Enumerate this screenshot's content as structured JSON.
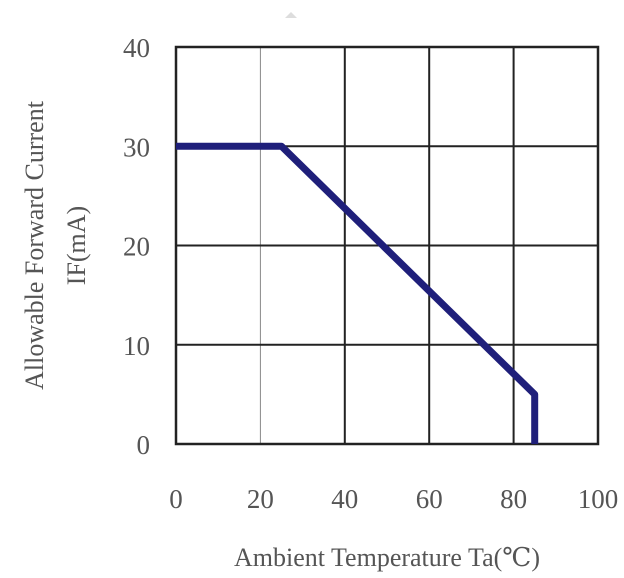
{
  "chart_data": {
    "type": "line",
    "xlabel": "Ambient Temperature Ta(℃)",
    "ylabel_line1": "Allowable Forward Current",
    "ylabel_line2": "IF(mA)",
    "xlim": [
      0,
      100
    ],
    "ylim": [
      0,
      40
    ],
    "x_ticks": [
      "0",
      "20",
      "40",
      "60",
      "80",
      "100"
    ],
    "y_ticks": [
      "0",
      "10",
      "20",
      "30",
      "40"
    ],
    "grid": true,
    "series": [
      {
        "color": "#1f1f7a",
        "points": [
          [
            0,
            30
          ],
          [
            25,
            30
          ],
          [
            85,
            5
          ],
          [
            85,
            0
          ]
        ]
      }
    ]
  }
}
